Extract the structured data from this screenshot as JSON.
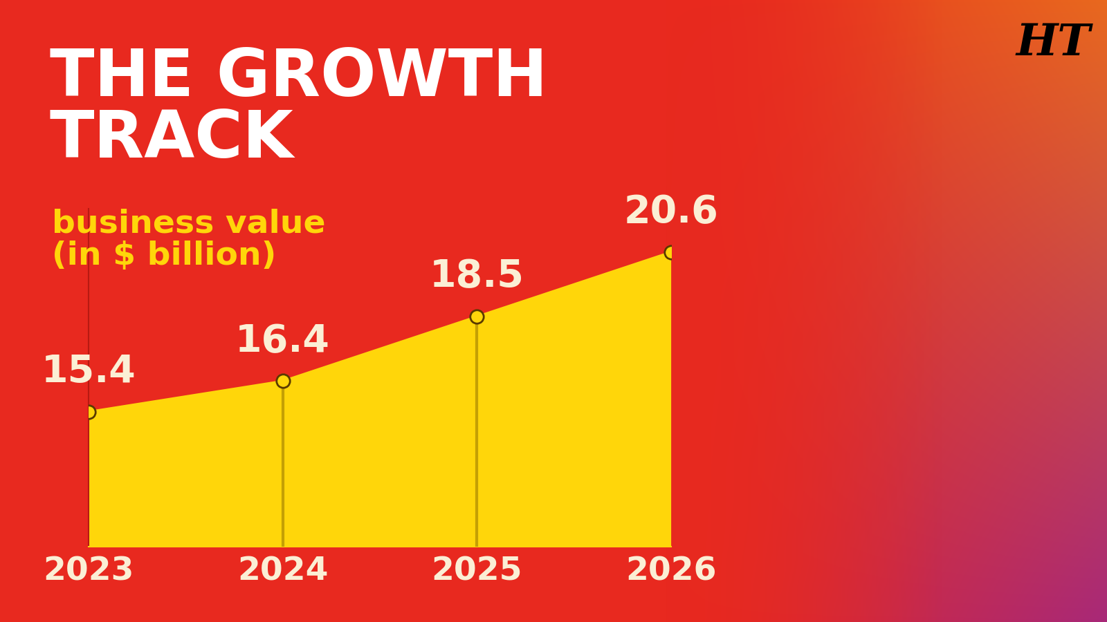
{
  "chart_data": {
    "type": "area",
    "title": "THE GROWTH\nTRACK",
    "subtitle": "business value\n(in $ billion)",
    "annotations": [
      "HT"
    ],
    "categories": [
      "2023",
      "2024",
      "2025",
      "2026"
    ],
    "values": [
      15.4,
      16.4,
      18.5,
      20.6
    ],
    "color": "#FFD60A",
    "marker": "o",
    "ylim": [
      11,
      22
    ],
    "yticks": [],
    "grid": false,
    "data_labels": true,
    "tick_labels": "x"
  }
}
